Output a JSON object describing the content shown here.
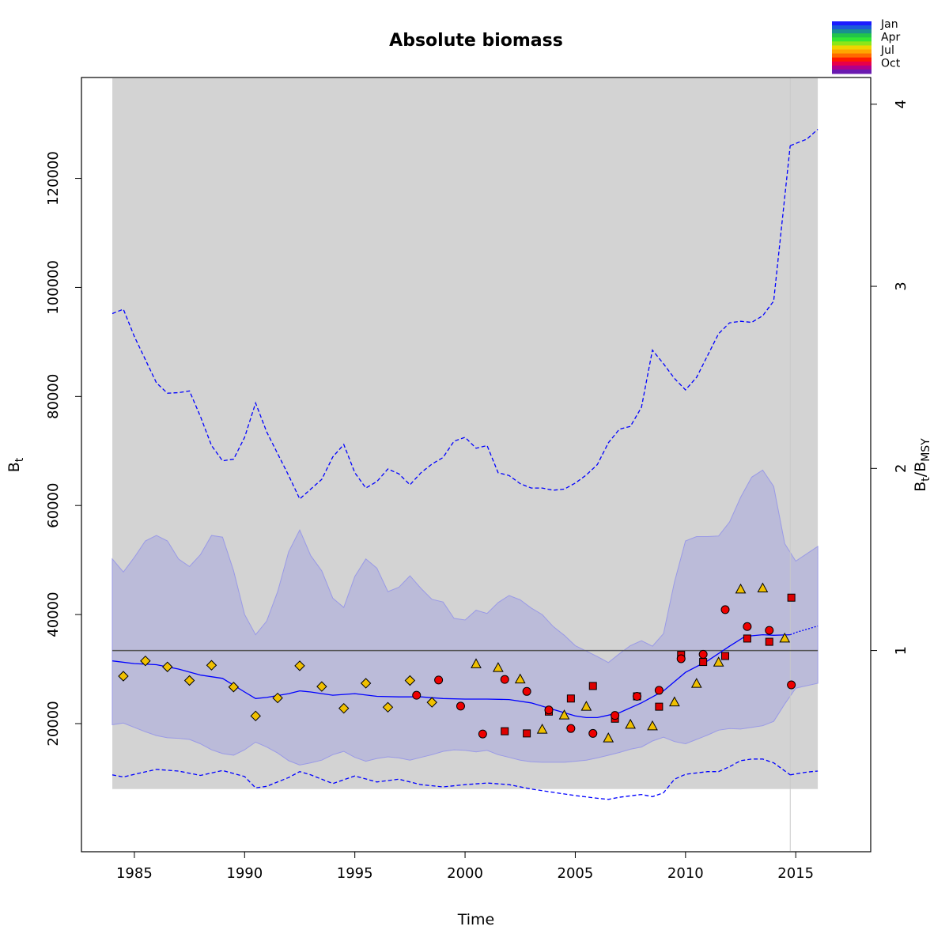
{
  "chart_data": {
    "type": "line",
    "title": "Absolute biomass",
    "xlabel": "Time",
    "ylabel_main": "B",
    "ylabel_sub": "t",
    "y2label_main": "B",
    "y2label_sub1": "t",
    "y2label_sep": "/B",
    "y2label_sub2": "MSY",
    "xlim": [
      1982.6,
      2018.4
    ],
    "ylim": [
      -3500,
      138500
    ],
    "x_ticks": [
      1985,
      1990,
      1995,
      2000,
      2005,
      2010,
      2015
    ],
    "x_tick_labels": [
      "1985",
      "1990",
      "1995",
      "2000",
      "2005",
      "2010",
      "2015"
    ],
    "y_ticks": [
      20000,
      40000,
      60000,
      80000,
      100000,
      120000
    ],
    "y_tick_labels": [
      "20000",
      "40000",
      "60000",
      "80000",
      "100000",
      "120000"
    ],
    "y2_ticks": [
      1,
      2,
      3,
      4
    ],
    "y2_tick_labels": [
      "1",
      "2",
      "3",
      "4"
    ],
    "bmsy": 33400,
    "region": {
      "x_start": 1984.0,
      "x_end": 2016.0,
      "y_low": 8000,
      "y_high": 138500
    },
    "forecast_start": 2014.75,
    "legend": {
      "position": "top-right",
      "labels": [
        "Jan",
        "Apr",
        "Jul",
        "Oct"
      ],
      "colors": [
        "#1a1aff",
        "#1a59d9",
        "#1a8f8f",
        "#22c44a",
        "#33e633",
        "#8ce619",
        "#f0d400",
        "#ffa600",
        "#ff6a00",
        "#ff1a00",
        "#e8004a",
        "#b0008c",
        "#6a1ab0"
      ]
    },
    "colors": {
      "panel": "#d3d3d3",
      "ci_band": "#bbbbd9",
      "ci_edge": "#9a9ae6",
      "median": "#0000ff",
      "bounds": "#0000ff",
      "bmsy_line": "#555555",
      "forecast_line": "#c8c8c8",
      "index1": "#ee0000",
      "index2": "#dd0000",
      "index_yellow": "#f0c000"
    },
    "median": {
      "x": [
        1984.0,
        1985.0,
        1986.0,
        1987.0,
        1988.0,
        1989.0,
        1990.0,
        1990.5,
        1991.0,
        1992.0,
        1992.5,
        1993.0,
        1994.0,
        1995.0,
        1996.0,
        1997.0,
        1998.0,
        1999.0,
        2000.0,
        2001.0,
        2002.0,
        2003.0,
        2004.0,
        2005.0,
        2005.5,
        2006.0,
        2007.0,
        2008.0,
        2009.0,
        2010.0,
        2011.0,
        2012.0,
        2012.7,
        2013.5,
        2014.0,
        2014.75
      ],
      "y": [
        31500,
        31000,
        30800,
        30000,
        28900,
        28300,
        25800,
        24600,
        24800,
        25500,
        26000,
        25800,
        25200,
        25500,
        25000,
        24900,
        24900,
        24600,
        24500,
        24500,
        24400,
        23800,
        22600,
        21400,
        21100,
        21100,
        22000,
        23800,
        26000,
        29400,
        31500,
        34200,
        36000,
        36300,
        36200,
        36300
      ]
    },
    "forecast_median": {
      "x": [
        2014.75,
        2015.0,
        2015.5,
        2016.0
      ],
      "y": [
        36300,
        36700,
        37300,
        37900
      ]
    },
    "upper_bound": {
      "x": [
        1984.0,
        1984.5,
        1985.0,
        1986.0,
        1986.5,
        1987.0,
        1987.5,
        1988.0,
        1988.5,
        1989.0,
        1989.5,
        1990.0,
        1990.5,
        1991.0,
        1992.0,
        1992.5,
        1993.0,
        1993.5,
        1994.0,
        1994.5,
        1995.0,
        1995.5,
        1996.0,
        1996.5,
        1997.0,
        1997.5,
        1998.0,
        1998.5,
        1999.0,
        1999.5,
        2000.0,
        2000.5,
        2001.0,
        2001.5,
        2002.0,
        2002.5,
        2003.0,
        2003.5,
        2004.0,
        2004.5,
        2005.0,
        2005.5,
        2006.0,
        2006.5,
        2007.0,
        2007.5,
        2008.0,
        2008.5,
        2009.0,
        2009.5,
        2010.0,
        2010.5,
        2011.0,
        2011.5,
        2012.0,
        2012.5,
        2013.0,
        2013.5,
        2014.0,
        2014.75
      ],
      "y": [
        95200,
        96000,
        91000,
        82500,
        80600,
        80700,
        81000,
        76300,
        71000,
        68200,
        68500,
        72500,
        78800,
        73500,
        65500,
        61200,
        63000,
        64800,
        68900,
        71200,
        66000,
        63200,
        64400,
        66700,
        65800,
        63800,
        66000,
        67600,
        68800,
        71800,
        72500,
        70500,
        71000,
        66000,
        65500,
        64000,
        63200,
        63200,
        62800,
        63000,
        64100,
        65600,
        67500,
        71500,
        74000,
        74500,
        78000,
        88500,
        86000,
        83300,
        81200,
        83500,
        87500,
        91500,
        93500,
        93800,
        93600,
        94800,
        97500,
        126000
      ],
      "style": "dashed"
    },
    "forecast_upper": {
      "x": [
        2014.75,
        2015.5,
        2016.0
      ],
      "y": [
        126000,
        127200,
        129000
      ]
    },
    "lower_bound": {
      "x": [
        1984.0,
        1984.5,
        1985.0,
        1986.0,
        1987.0,
        1988.0,
        1989.0,
        1990.0,
        1990.5,
        1991.0,
        1992.0,
        1992.5,
        1993.0,
        1994.0,
        1995.0,
        1996.0,
        1997.0,
        1998.0,
        1999.0,
        2000.0,
        2001.0,
        2002.0,
        2003.0,
        2004.0,
        2005.0,
        2006.0,
        2006.5,
        2007.0,
        2008.0,
        2008.5,
        2009.0,
        2009.5,
        2010.0,
        2011.0,
        2011.5,
        2012.0,
        2012.5,
        2013.0,
        2013.5,
        2014.0,
        2014.75
      ],
      "y": [
        10600,
        10200,
        10700,
        11600,
        11300,
        10500,
        11400,
        10300,
        8200,
        8500,
        10100,
        11200,
        10600,
        9000,
        10400,
        9300,
        9800,
        8800,
        8400,
        8800,
        9100,
        8800,
        8000,
        7400,
        6800,
        6300,
        6100,
        6500,
        7000,
        6600,
        7300,
        9800,
        10700,
        11200,
        11200,
        12100,
        13200,
        13500,
        13500,
        12800,
        10600
      ],
      "style": "dashed"
    },
    "forecast_lower": {
      "x": [
        2014.75,
        2015.5,
        2016.0
      ],
      "y": [
        10600,
        11100,
        11300
      ]
    },
    "ci_upper": {
      "x": [
        1984.0,
        1984.5,
        1985.0,
        1985.5,
        1986.0,
        1986.5,
        1987.0,
        1987.5,
        1988.0,
        1988.5,
        1989.0,
        1989.5,
        1990.0,
        1990.5,
        1991.0,
        1991.5,
        1992.0,
        1992.5,
        1993.0,
        1993.5,
        1994.0,
        1994.5,
        1995.0,
        1995.5,
        1996.0,
        1996.5,
        1997.0,
        1997.5,
        1998.0,
        1998.5,
        1999.0,
        1999.5,
        2000.0,
        2000.5,
        2001.0,
        2001.5,
        2002.0,
        2002.5,
        2003.0,
        2003.5,
        2004.0,
        2004.5,
        2005.0,
        2005.5,
        2006.0,
        2006.5,
        2007.0,
        2007.5,
        2008.0,
        2008.5,
        2009.0,
        2009.5,
        2010.0,
        2010.5,
        2011.0,
        2011.5,
        2012.0,
        2012.5,
        2013.0,
        2013.5,
        2014.0,
        2014.5,
        2015.0,
        2016.0
      ],
      "y": [
        50200,
        47800,
        50500,
        53500,
        54500,
        53500,
        50200,
        48800,
        51000,
        54500,
        54200,
        48000,
        40000,
        36300,
        38800,
        44200,
        51500,
        55500,
        50800,
        48000,
        43000,
        41300,
        47000,
        50200,
        48500,
        44200,
        45000,
        47100,
        44800,
        42800,
        42300,
        39300,
        39000,
        40800,
        40200,
        42200,
        43500,
        42700,
        41200,
        40000,
        37800,
        36200,
        34300,
        33300,
        32300,
        31200,
        32800,
        34300,
        35200,
        34200,
        36500,
        46000,
        53500,
        54300,
        54300,
        54400,
        57000,
        61500,
        65200,
        66500,
        63500,
        53000,
        49800,
        52500
      ]
    },
    "ci_lower": {
      "x": [
        1984.0,
        1984.5,
        1985.0,
        1985.5,
        1986.0,
        1986.5,
        1987.0,
        1987.5,
        1988.0,
        1988.5,
        1989.0,
        1989.5,
        1990.0,
        1990.5,
        1991.0,
        1991.5,
        1992.0,
        1992.5,
        1993.0,
        1993.5,
        1994.0,
        1994.5,
        1995.0,
        1995.5,
        1996.0,
        1996.5,
        1997.0,
        1997.5,
        1998.0,
        1998.5,
        1999.0,
        1999.5,
        2000.0,
        2000.5,
        2001.0,
        2001.5,
        2002.0,
        2002.5,
        2003.0,
        2003.5,
        2004.0,
        2004.5,
        2005.0,
        2005.5,
        2006.0,
        2006.5,
        2007.0,
        2007.5,
        2008.0,
        2008.5,
        2009.0,
        2009.5,
        2010.0,
        2010.5,
        2011.0,
        2011.5,
        2012.0,
        2012.5,
        2013.0,
        2013.5,
        2014.0,
        2014.5,
        2015.0,
        2016.0
      ],
      "y": [
        19800,
        20100,
        19300,
        18500,
        17800,
        17400,
        17300,
        17100,
        16300,
        15200,
        14500,
        14200,
        15200,
        16600,
        15700,
        14600,
        13200,
        12400,
        12800,
        13300,
        14300,
        14900,
        13800,
        13100,
        13600,
        13900,
        13700,
        13300,
        13800,
        14300,
        14900,
        15200,
        15100,
        14800,
        15100,
        14300,
        13800,
        13300,
        13000,
        12900,
        12900,
        12900,
        13100,
        13300,
        13700,
        14200,
        14700,
        15300,
        15700,
        16800,
        17500,
        16700,
        16300,
        17100,
        17900,
        18800,
        19100,
        19000,
        19300,
        19600,
        20400,
        23600,
        26500,
        27400
      ]
    },
    "index_circles": {
      "x": [
        1997.8,
        1998.8,
        1999.8,
        2000.8,
        2001.8,
        2002.8,
        2003.8,
        2004.8,
        2005.8,
        2006.8,
        2007.8,
        2008.8,
        2009.8,
        2010.8,
        2011.8,
        2012.8,
        2013.8,
        2014.8
      ],
      "y": [
        25200,
        28000,
        23200,
        18100,
        28100,
        25900,
        22500,
        19100,
        18200,
        21500,
        25000,
        26100,
        31900,
        32700,
        40900,
        37800,
        37100,
        27100
      ]
    },
    "index_squares": {
      "x": [
        2001.8,
        2002.8,
        2003.8,
        2004.8,
        2005.8,
        2006.8,
        2007.8,
        2008.8,
        2009.8,
        2010.8,
        2011.8,
        2012.8,
        2013.8,
        2014.8
      ],
      "y": [
        18600,
        18200,
        22200,
        24600,
        26900,
        20900,
        25000,
        23100,
        32600,
        31300,
        32400,
        35600,
        35000,
        43100
      ]
    },
    "index_triangles": {
      "x": [
        2000.5,
        2001.5,
        2002.5,
        2003.5,
        2004.5,
        2005.5,
        2006.5,
        2007.5,
        2008.5,
        2009.5,
        2010.5,
        2011.5,
        2012.5,
        2013.5,
        2014.5
      ],
      "y": [
        30900,
        30200,
        28100,
        18900,
        21500,
        23100,
        17300,
        19800,
        19500,
        23900,
        27300,
        31200,
        44600,
        44800,
        35600
      ]
    },
    "index_diamonds": {
      "x": [
        1984.5,
        1985.5,
        1986.5,
        1987.5,
        1988.5,
        1989.5,
        1990.5,
        1991.5,
        1992.5,
        1993.5,
        1994.5,
        1995.5,
        1996.5,
        1997.5,
        1998.5
      ],
      "y": [
        28700,
        31500,
        30400,
        27900,
        30700,
        26700,
        21400,
        24700,
        30600,
        26800,
        22800,
        27400,
        23000,
        27900,
        23900
      ]
    }
  }
}
